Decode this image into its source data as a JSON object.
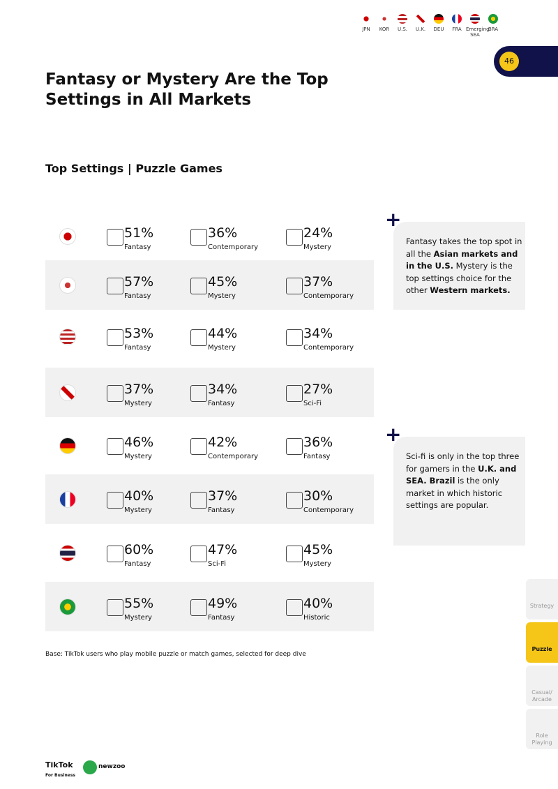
{
  "header": {
    "markets": [
      "JPN",
      "KOR",
      "U.S.",
      "U.K.",
      "DEU",
      "FRA",
      "Emerging SEA",
      "BRA"
    ],
    "page_number": "46"
  },
  "title": "Fantasy or Mystery Are the Top Settings in All Markets",
  "subtitle": "Top Settings | Puzzle Games",
  "rows": [
    [
      {
        "value": "51%",
        "label": "Fantasy"
      },
      {
        "value": "36%",
        "label": "Contemporary"
      },
      {
        "value": "24%",
        "label": "Mystery"
      }
    ],
    [
      {
        "value": "57%",
        "label": "Fantasy"
      },
      {
        "value": "45%",
        "label": "Mystery"
      },
      {
        "value": "37%",
        "label": "Contemporary"
      }
    ],
    [
      {
        "value": "53%",
        "label": "Fantasy"
      },
      {
        "value": "44%",
        "label": "Mystery"
      },
      {
        "value": "34%",
        "label": "Contemporary"
      }
    ],
    [
      {
        "value": "37%",
        "label": "Mystery"
      },
      {
        "value": "34%",
        "label": "Fantasy"
      },
      {
        "value": "27%",
        "label": "Sci-Fi"
      }
    ],
    [
      {
        "value": "46%",
        "label": "Mystery"
      },
      {
        "value": "42%",
        "label": "Contemporary"
      },
      {
        "value": "36%",
        "label": "Fantasy"
      }
    ],
    [
      {
        "value": "40%",
        "label": "Mystery"
      },
      {
        "value": "37%",
        "label": "Fantasy"
      },
      {
        "value": "30%",
        "label": "Contemporary"
      }
    ],
    [
      {
        "value": "60%",
        "label": "Fantasy"
      },
      {
        "value": "47%",
        "label": "Sci-Fi"
      },
      {
        "value": "45%",
        "label": "Mystery"
      }
    ],
    [
      {
        "value": "55%",
        "label": "Mystery"
      },
      {
        "value": "49%",
        "label": "Fantasy"
      },
      {
        "value": "40%",
        "label": "Historic"
      }
    ]
  ],
  "notes": [
    [
      "Fantasy takes the top spot in all the ",
      "Asian markets and in the U.S.",
      " Mystery is the top settings choice for the other ",
      "Western markets."
    ],
    [
      "Sci-fi is only in the top three for gamers in the ",
      "U.K. and SEA. Brazil",
      " is the only market in which historic settings are popular."
    ]
  ],
  "footnote": "Base: TikTok users who play mobile puzzle or match games, selected for deep dive",
  "side_tabs": [
    "Strategy",
    "Puzzle",
    "Casual/ Arcade",
    "Role Playing"
  ],
  "logo": {
    "brand": "TikTok",
    "sub": "For Business",
    "partner": "newzoo"
  }
}
